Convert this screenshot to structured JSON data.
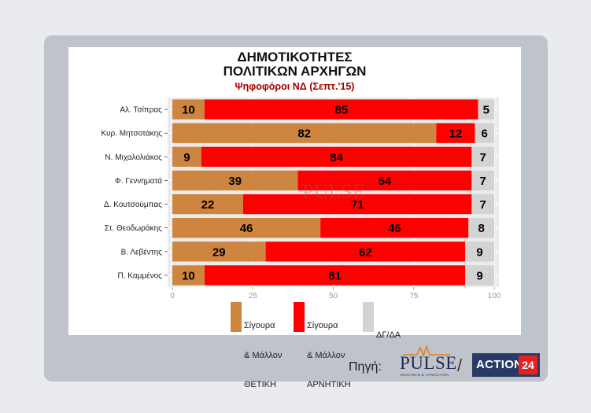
{
  "chart_data": {
    "type": "bar",
    "orientation": "horizontal",
    "stacked": true,
    "title_lines": [
      "ΔΗΜΟΤΙΚΟΤΗΤΕΣ",
      "ΠΟΛΙΤΙΚΩΝ ΑΡΧΗΓΩΝ"
    ],
    "subtitle": "Ψηφοφόροι ΝΔ (Σεπτ.'15)",
    "categories": [
      "Αλ. Τσίπρας",
      "Κυρ. Μητσοτάκης",
      "Ν. Μιχαλολιάκος",
      "Φ. Γεννηματά",
      "Δ. Κουτσούμπας",
      "Στ. Θεοδωράκης",
      "Β. Λεβέντης",
      "Π. Καμμένος"
    ],
    "series": [
      {
        "name": "Σίγουρα & Μάλλον ΘΕΤΙΚΗ",
        "color": "#cd853f",
        "values": [
          10,
          82,
          9,
          39,
          22,
          46,
          29,
          10
        ]
      },
      {
        "name": "Σίγουρα & Μάλλον ΑΡΝΗΤΙΚΗ",
        "color": "#ff0000",
        "values": [
          85,
          12,
          84,
          54,
          71,
          46,
          62,
          81
        ]
      },
      {
        "name": "ΔΓ/ΔΑ",
        "color": "#d3d3d3",
        "values": [
          5,
          6,
          7,
          7,
          7,
          8,
          9,
          9
        ]
      }
    ],
    "xlim": [
      0,
      100
    ],
    "xticks": [
      "0",
      "25",
      "50",
      "75",
      "100"
    ],
    "grid": true,
    "legend_position": "bottom"
  },
  "legend": [
    {
      "line1": "Σίγουρα",
      "line2": "& Μάλλον",
      "line3": "ΘΕΤΙΚΗ",
      "color": "#cd853f"
    },
    {
      "line1": "Σίγουρα",
      "line2": "& Μάλλον",
      "line3": "ΑΡΝΗΤΙΚΗ",
      "color": "#ff0000"
    },
    {
      "line1": "ΔΓ/ΔΑ",
      "line2": "",
      "line3": "",
      "color": "#d3d3d3"
    }
  ],
  "source": {
    "label": "Πηγή:",
    "pulse_name": "PULSE",
    "pulse_tagline": "RESEARCH & CONSULTING",
    "separator": "/",
    "action_name": "ACTION",
    "action_number": "24"
  },
  "watermark": "PULSE"
}
